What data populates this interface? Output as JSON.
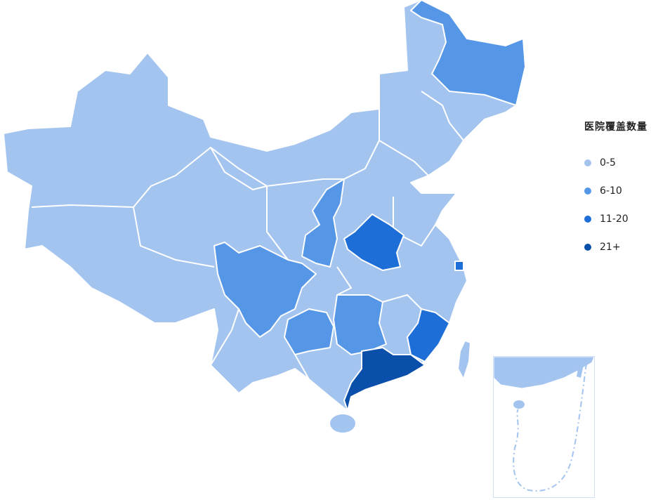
{
  "legend": {
    "title": "医院覆盖数量",
    "items": [
      {
        "label": "0-5",
        "color": "#a3c4ef"
      },
      {
        "label": "6-10",
        "color": "#5597e6"
      },
      {
        "label": "11-20",
        "color": "#1d6ed6"
      },
      {
        "label": "21+",
        "color": "#0a4faa"
      }
    ]
  },
  "border_color": "#ffffff",
  "regions": [
    {
      "id": "heilongjiang",
      "level": 1
    },
    {
      "id": "shaanxi",
      "level": 1
    },
    {
      "id": "henan",
      "level": 2
    },
    {
      "id": "sichuan",
      "level": 1
    },
    {
      "id": "guizhou",
      "level": 1
    },
    {
      "id": "hunan",
      "level": 1
    },
    {
      "id": "fujian",
      "level": 2
    },
    {
      "id": "guangdong",
      "level": 3
    },
    {
      "id": "shanghai",
      "level": 2
    }
  ]
}
